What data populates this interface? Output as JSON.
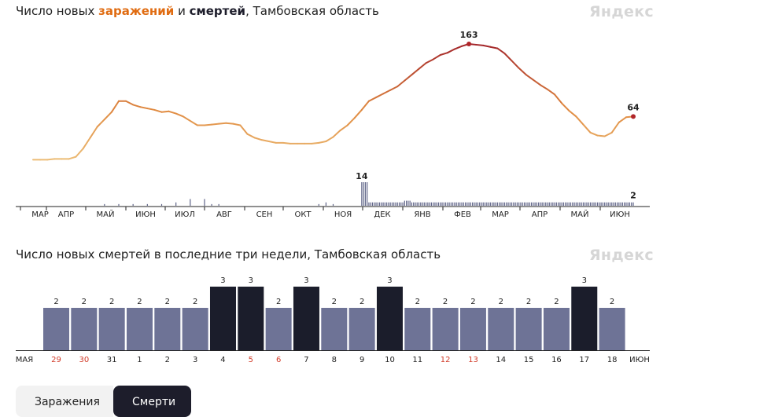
{
  "top": {
    "title_prefix": "Число новых ",
    "title_infections": "заражений",
    "title_mid": " и ",
    "title_deaths": "смертей",
    "title_suffix": ", Тамбовская область",
    "logo": "Яндекс"
  },
  "bottom": {
    "title": "Число новых смертей в последние три недели, Тамбовская область",
    "logo": "Яндекс"
  },
  "tabs": {
    "infections": "Заражения",
    "deaths": "Смерти"
  },
  "colors": {
    "curve_low": "#edc07a",
    "curve_mid": "#e08a40",
    "curve_high": "#a3252a",
    "deaths_bar": "#5f6488",
    "bar_normal": "#6e7396",
    "bar_high": "#1b1d2b",
    "weekend_label": "#d23c2a",
    "peak_dot": "#b0262a"
  },
  "chart_data": [
    {
      "type": "line",
      "series": [
        {
          "values": [
            5,
            5,
            5,
            6,
            6,
            6,
            9,
            20,
            35,
            50,
            60,
            70,
            85,
            85,
            80,
            77,
            75,
            73,
            70,
            71,
            68,
            64,
            58,
            52,
            52,
            53,
            54,
            55,
            54,
            52,
            40,
            35,
            32,
            30,
            28,
            28,
            27,
            27,
            27,
            27,
            28,
            30,
            36,
            45,
            52,
            62,
            73,
            85,
            90,
            95,
            100,
            105,
            113,
            121,
            129,
            137,
            142,
            148,
            151,
            156,
            160,
            163,
            162,
            161,
            159,
            157,
            150,
            140,
            130,
            121,
            114,
            107,
            101,
            94,
            82,
            72,
            64,
            53,
            42,
            38,
            37,
            42,
            56,
            63,
            64
          ]
        }
      ],
      "x_range": [
        "2020-03",
        "2021-06"
      ],
      "x_tick_labels": [
        "МАР",
        "АПР",
        "МАЙ",
        "ИЮН",
        "ИЮЛ",
        "АВГ",
        "СЕН",
        "ОКТ",
        "НОЯ",
        "ДЕК",
        "ЯНВ",
        "ФЕВ",
        "МАР",
        "АПР",
        "МАЙ",
        "ИЮН"
      ],
      "annotations": [
        {
          "label": "163",
          "value": 163
        },
        {
          "label": "64",
          "value": 64
        }
      ]
    },
    {
      "type": "bar",
      "series": [
        {
          "values": [
            0,
            0,
            0,
            0,
            0,
            0,
            0,
            0,
            0,
            0,
            1,
            0,
            1,
            0,
            1,
            0,
            1,
            0,
            1,
            0,
            2,
            0,
            4,
            0,
            4,
            1,
            1,
            0,
            0,
            0,
            0,
            0,
            0,
            0,
            0,
            0,
            0,
            0,
            0,
            0,
            1,
            2,
            1,
            0,
            0,
            0,
            14,
            2,
            2,
            2,
            2,
            2,
            3,
            2,
            2,
            2,
            2,
            2,
            2,
            2,
            2,
            2,
            2,
            2,
            2,
            2,
            2,
            2,
            2,
            2,
            2,
            2,
            2,
            2,
            2,
            2,
            2,
            2,
            2,
            2,
            2,
            2,
            2,
            2,
            2
          ]
        }
      ],
      "annotations": [
        {
          "label": "14",
          "value": 14
        },
        {
          "label": "2",
          "value": 2
        }
      ]
    },
    {
      "type": "bar",
      "categories": [
        "29",
        "30",
        "31",
        "1",
        "2",
        "3",
        "4",
        "5",
        "6",
        "7",
        "8",
        "9",
        "10",
        "11",
        "12",
        "13",
        "14",
        "15",
        "16",
        "17",
        "18"
      ],
      "values": [
        2,
        2,
        2,
        2,
        2,
        2,
        3,
        3,
        2,
        3,
        2,
        2,
        3,
        2,
        2,
        2,
        2,
        2,
        2,
        3,
        2
      ],
      "weekend": [
        true,
        true,
        false,
        false,
        false,
        false,
        false,
        true,
        true,
        false,
        false,
        false,
        false,
        false,
        true,
        true,
        false,
        false,
        false,
        false,
        false
      ],
      "month_left": "МАЯ",
      "month_right": "ИЮН",
      "ylim": [
        0,
        3
      ]
    }
  ]
}
